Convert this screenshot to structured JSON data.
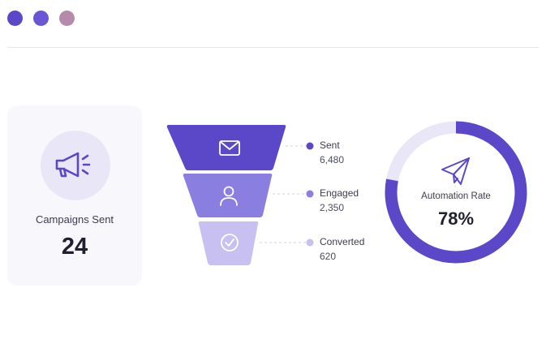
{
  "window": {
    "dot_colors": [
      "#5a48c8",
      "#6a56d4",
      "#b58aab"
    ]
  },
  "campaigns_card": {
    "icon": "megaphone-icon",
    "label": "Campaigns Sent",
    "value": "24"
  },
  "funnel": {
    "stages": [
      {
        "icon": "mail-icon",
        "label": "Sent",
        "value": "6,480",
        "color": "#5a48c8"
      },
      {
        "icon": "user-icon",
        "label": "Engaged",
        "value": "2,350",
        "color": "#8a7ee0"
      },
      {
        "icon": "check-circle-icon",
        "label": "Converted",
        "value": "620",
        "color": "#c7c0f0"
      }
    ]
  },
  "automation": {
    "icon": "paper-plane-icon",
    "label": "Automation Rate",
    "value": "78%",
    "percent": 78,
    "ring_color": "#5a48c8",
    "track_color": "#e9e7f7"
  }
}
